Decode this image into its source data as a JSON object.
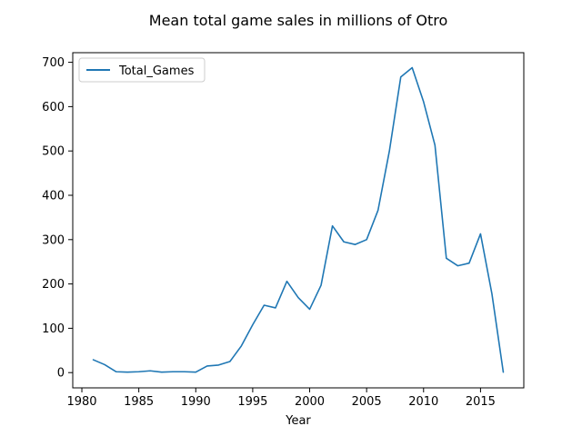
{
  "chart_data": {
    "type": "line",
    "title": "Mean total game sales in millions of Otro",
    "xlabel": "Year",
    "ylabel": "",
    "xlim": [
      1979.2,
      2018.8
    ],
    "ylim": [
      -34.4,
      721.7
    ],
    "x_ticks": [
      1980,
      1985,
      1990,
      1995,
      2000,
      2005,
      2010,
      2015
    ],
    "y_ticks": [
      0,
      100,
      200,
      300,
      400,
      500,
      600,
      700
    ],
    "grid": false,
    "legend_position": "top-left",
    "series": [
      {
        "name": "Total_Games",
        "color": "#1f77b4",
        "x": [
          1981,
          1982,
          1983,
          1984,
          1985,
          1986,
          1987,
          1988,
          1989,
          1990,
          1991,
          1992,
          1993,
          1994,
          1995,
          1996,
          1997,
          1998,
          1999,
          2000,
          2001,
          2002,
          2003,
          2004,
          2005,
          2006,
          2007,
          2008,
          2009,
          2010,
          2011,
          2012,
          2013,
          2014,
          2015,
          2016,
          2017
        ],
        "values": [
          29,
          18,
          2,
          1,
          2,
          4,
          1,
          2,
          2,
          1,
          15,
          17,
          25,
          60,
          108,
          152,
          146,
          206,
          169,
          143,
          197,
          331,
          295,
          289,
          300,
          366,
          500,
          667,
          688,
          611,
          513,
          258,
          241,
          247,
          313,
          178,
          1
        ]
      }
    ]
  }
}
